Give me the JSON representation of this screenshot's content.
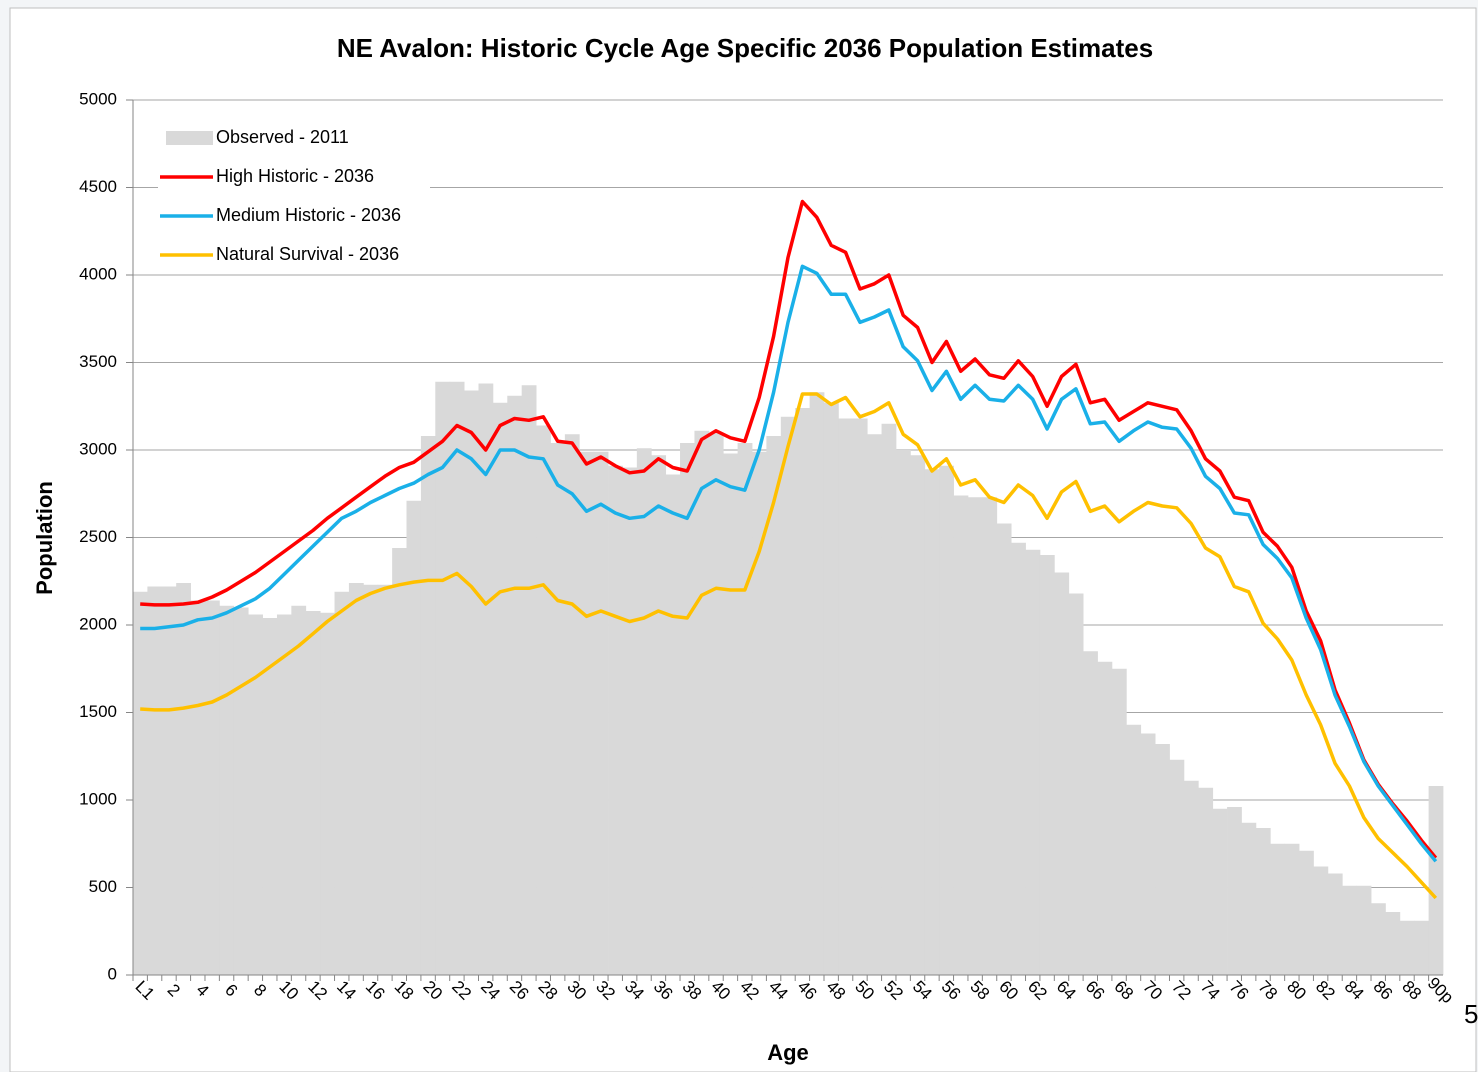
{
  "chart_data": {
    "type": "bar",
    "title": "NE Avalon: Historic Cycle Age Specific 2036 Population Estimates",
    "x_label": "Age",
    "y_label": "Population",
    "annotation": "5",
    "categories": [
      "L1",
      null,
      "2",
      null,
      "4",
      null,
      "6",
      null,
      "8",
      null,
      "10",
      null,
      "12",
      null,
      "14",
      null,
      "16",
      null,
      "18",
      null,
      "20",
      null,
      "22",
      null,
      "24",
      null,
      "26",
      null,
      "28",
      null,
      "30",
      null,
      "32",
      null,
      "34",
      null,
      "36",
      null,
      "38",
      null,
      "40",
      null,
      "42",
      null,
      "44",
      null,
      "46",
      null,
      "48",
      null,
      "50",
      null,
      "52",
      null,
      "54",
      null,
      "56",
      null,
      "58",
      null,
      "60",
      null,
      "62",
      null,
      "64",
      null,
      "66",
      null,
      "68",
      null,
      "70",
      null,
      "72",
      null,
      "74",
      null,
      "76",
      null,
      "78",
      null,
      "80",
      null,
      "82",
      null,
      "84",
      null,
      "86",
      null,
      "88",
      null,
      "90p"
    ],
    "ylim": [
      0,
      5000
    ],
    "yticks": [
      0,
      500,
      1000,
      1500,
      2000,
      2500,
      3000,
      3500,
      4000,
      4500,
      5000
    ],
    "grid": true,
    "legend": "top-left",
    "series": [
      {
        "name": "Observed - 2011",
        "type": "bar",
        "color": "#d9d9d9",
        "values": [
          2190,
          2220,
          2220,
          2240,
          2140,
          2140,
          2110,
          2100,
          2060,
          2040,
          2060,
          2110,
          2080,
          2070,
          2190,
          2240,
          2230,
          2230,
          2440,
          2710,
          3080,
          3390,
          3390,
          3340,
          3380,
          3270,
          3310,
          3370,
          3140,
          3040,
          3090,
          2990,
          2990,
          2910,
          2900,
          3010,
          2970,
          2860,
          3040,
          3110,
          3100,
          2980,
          3040,
          2990,
          3080,
          3190,
          3240,
          3330,
          3270,
          3180,
          3180,
          3090,
          3150,
          3000,
          2970,
          2890,
          2910,
          2740,
          2730,
          2730,
          2580,
          2470,
          2430,
          2400,
          2300,
          2180,
          1850,
          1790,
          1750,
          1430,
          1380,
          1320,
          1230,
          1110,
          1070,
          950,
          960,
          870,
          840,
          750,
          750,
          710,
          620,
          580,
          510,
          510,
          410,
          360,
          310,
          310,
          1080
        ]
      },
      {
        "name": "High Historic - 2036",
        "type": "line",
        "color": "#ff0000",
        "values": [
          2120,
          2115,
          2115,
          2120,
          2130,
          2160,
          2200,
          2250,
          2300,
          2360,
          2420,
          2480,
          2540,
          2610,
          2670,
          2730,
          2790,
          2850,
          2900,
          2930,
          2990,
          3050,
          3140,
          3100,
          3000,
          3140,
          3180,
          3170,
          3190,
          3050,
          3040,
          2920,
          2960,
          2910,
          2870,
          2880,
          2950,
          2900,
          2880,
          3060,
          3110,
          3070,
          3050,
          3300,
          3650,
          4100,
          4420,
          4330,
          4170,
          4130,
          3920,
          3950,
          4000,
          3770,
          3700,
          3500,
          3620,
          3450,
          3520,
          3430,
          3410,
          3510,
          3420,
          3250,
          3420,
          3490,
          3270,
          3290,
          3170,
          3220,
          3270,
          3250,
          3230,
          3110,
          2950,
          2880,
          2730,
          2710,
          2530,
          2450,
          2330,
          2080,
          1910,
          1630,
          1440,
          1230,
          1090,
          980,
          880,
          770,
          670
        ]
      },
      {
        "name": "Medium Historic - 2036",
        "type": "line",
        "color": "#1ab0e8",
        "values": [
          1980,
          1980,
          1990,
          2000,
          2030,
          2040,
          2070,
          2110,
          2150,
          2210,
          2290,
          2370,
          2450,
          2530,
          2610,
          2650,
          2700,
          2740,
          2780,
          2810,
          2860,
          2900,
          3000,
          2950,
          2860,
          3000,
          3000,
          2960,
          2950,
          2800,
          2750,
          2650,
          2690,
          2640,
          2610,
          2620,
          2680,
          2640,
          2610,
          2780,
          2830,
          2790,
          2770,
          3000,
          3330,
          3730,
          4050,
          4010,
          3890,
          3890,
          3730,
          3760,
          3800,
          3590,
          3510,
          3340,
          3450,
          3290,
          3370,
          3290,
          3280,
          3370,
          3290,
          3120,
          3290,
          3350,
          3150,
          3160,
          3050,
          3110,
          3160,
          3130,
          3120,
          3010,
          2850,
          2780,
          2640,
          2630,
          2460,
          2380,
          2270,
          2040,
          1860,
          1600,
          1420,
          1220,
          1080,
          970,
          860,
          750,
          650
        ]
      },
      {
        "name": "Natural Survival - 2036",
        "type": "line",
        "color": "#ffc000",
        "values": [
          1520,
          1515,
          1515,
          1525,
          1540,
          1560,
          1600,
          1650,
          1700,
          1760,
          1820,
          1880,
          1950,
          2020,
          2080,
          2140,
          2180,
          2210,
          2230,
          2245,
          2255,
          2255,
          2295,
          2220,
          2120,
          2190,
          2210,
          2210,
          2230,
          2140,
          2120,
          2050,
          2080,
          2050,
          2020,
          2040,
          2080,
          2050,
          2040,
          2170,
          2210,
          2200,
          2200,
          2420,
          2700,
          3020,
          3320,
          3320,
          3260,
          3300,
          3190,
          3220,
          3270,
          3090,
          3030,
          2880,
          2950,
          2800,
          2830,
          2730,
          2700,
          2800,
          2740,
          2610,
          2760,
          2820,
          2650,
          2680,
          2590,
          2650,
          2700,
          2680,
          2670,
          2580,
          2440,
          2390,
          2220,
          2190,
          2010,
          1920,
          1800,
          1600,
          1430,
          1210,
          1080,
          900,
          780,
          700,
          620,
          530,
          440
        ]
      }
    ]
  }
}
